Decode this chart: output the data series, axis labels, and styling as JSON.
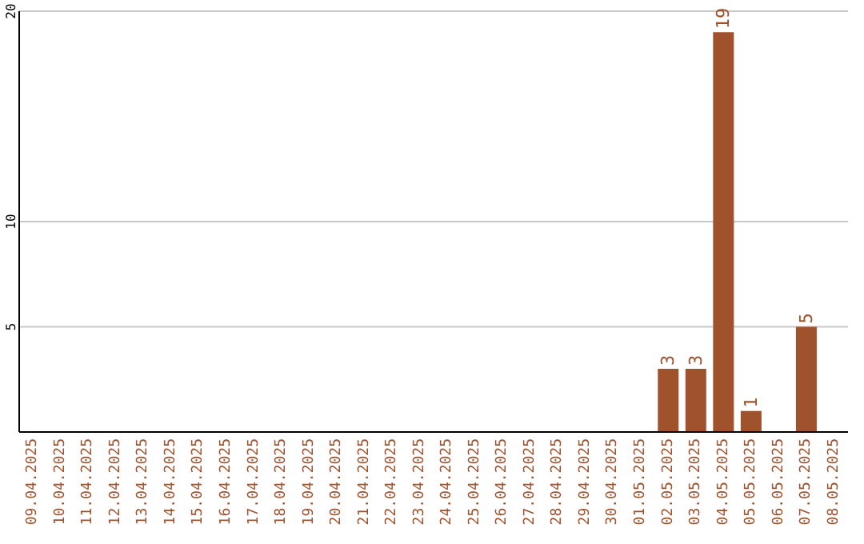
{
  "chart_data": {
    "type": "bar",
    "categories": [
      "09.04.2025",
      "10.04.2025",
      "11.04.2025",
      "12.04.2025",
      "13.04.2025",
      "14.04.2025",
      "15.04.2025",
      "16.04.2025",
      "17.04.2025",
      "18.04.2025",
      "19.04.2025",
      "20.04.2025",
      "21.04.2025",
      "22.04.2025",
      "23.04.2025",
      "24.04.2025",
      "25.04.2025",
      "26.04.2025",
      "27.04.2025",
      "28.04.2025",
      "29.04.2025",
      "30.04.2025",
      "01.05.2025",
      "02.05.2025",
      "03.05.2025",
      "04.05.2025",
      "05.05.2025",
      "06.05.2025",
      "07.05.2025",
      "08.05.2025"
    ],
    "values": [
      0,
      0,
      0,
      0,
      0,
      0,
      0,
      0,
      0,
      0,
      0,
      0,
      0,
      0,
      0,
      0,
      0,
      0,
      0,
      0,
      0,
      0,
      0,
      3,
      3,
      19,
      1,
      0,
      5,
      0
    ],
    "value_labels": [
      null,
      null,
      null,
      null,
      null,
      null,
      null,
      null,
      null,
      null,
      null,
      null,
      null,
      null,
      null,
      null,
      null,
      null,
      null,
      null,
      null,
      null,
      null,
      "3",
      "3",
      "19",
      "1",
      null,
      "5",
      null
    ],
    "color": "#a0522d",
    "ylim": [
      0,
      20
    ],
    "yticks": [
      5,
      10,
      20
    ],
    "grid": "y"
  }
}
